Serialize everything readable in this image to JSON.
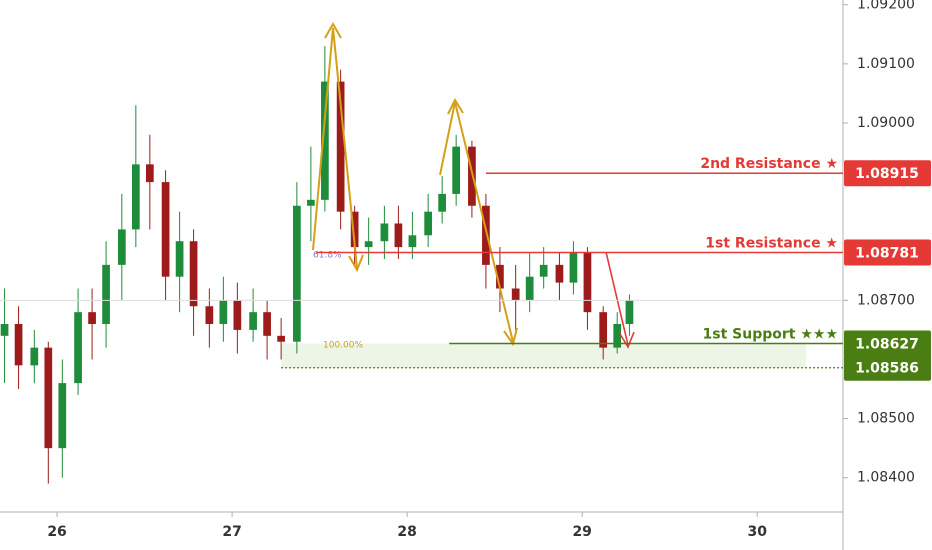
{
  "chart_data": {
    "type": "candlestick",
    "x": [
      25.7,
      25.78,
      25.87,
      25.95,
      26.03,
      26.12,
      26.2,
      26.28,
      26.37,
      26.45,
      26.53,
      26.62,
      26.7,
      26.78,
      26.87,
      26.95,
      27.03,
      27.12,
      27.2,
      27.28,
      27.37,
      27.45,
      27.53,
      27.62,
      27.7,
      27.78,
      27.87,
      27.95,
      28.03,
      28.12,
      28.2,
      28.28,
      28.37,
      28.45,
      28.53,
      28.62,
      28.7,
      28.78,
      28.87,
      28.95,
      29.03,
      29.12,
      29.2,
      29.27
    ],
    "open": [
      1.0864,
      1.0866,
      1.0859,
      1.0862,
      1.0845,
      1.0856,
      1.0868,
      1.0866,
      1.0876,
      1.0882,
      1.0893,
      1.089,
      1.0874,
      1.088,
      1.0869,
      1.0866,
      1.087,
      1.0865,
      1.0868,
      1.0864,
      1.0863,
      1.0886,
      1.0887,
      1.0907,
      1.0885,
      1.0879,
      1.088,
      1.0883,
      1.0879,
      1.0881,
      1.0885,
      1.0888,
      1.0896,
      1.0886,
      1.0876,
      1.0872,
      1.087,
      1.0874,
      1.0876,
      1.0873,
      1.0878,
      1.0868,
      1.0862,
      1.0866
    ],
    "high": [
      1.0872,
      1.0869,
      1.0865,
      1.0863,
      1.086,
      1.0872,
      1.0872,
      1.088,
      1.0888,
      1.0903,
      1.0898,
      1.0892,
      1.0885,
      1.0882,
      1.0872,
      1.0874,
      1.0873,
      1.0872,
      1.087,
      1.0867,
      1.089,
      1.0896,
      1.0913,
      1.0909,
      1.0886,
      1.0884,
      1.0886,
      1.0886,
      1.0885,
      1.0888,
      1.0891,
      1.0898,
      1.0897,
      1.0888,
      1.0879,
      1.0876,
      1.0878,
      1.0879,
      1.0878,
      1.088,
      1.0879,
      1.0869,
      1.0868,
      1.0871
    ],
    "low": [
      1.0856,
      1.0855,
      1.0856,
      1.0839,
      1.084,
      1.0854,
      1.086,
      1.0862,
      1.087,
      1.0879,
      1.0882,
      1.087,
      1.0868,
      1.0864,
      1.0862,
      1.0863,
      1.0861,
      1.0863,
      1.086,
      1.086,
      1.0861,
      1.088,
      1.0885,
      1.0882,
      1.0876,
      1.0876,
      1.0877,
      1.0877,
      1.0877,
      1.0879,
      1.0883,
      1.0886,
      1.0884,
      1.0872,
      1.0868,
      1.0865,
      1.0868,
      1.0872,
      1.087,
      1.0871,
      1.0865,
      1.086,
      1.0861,
      1.0864
    ],
    "close": [
      1.0866,
      1.0859,
      1.0862,
      1.0845,
      1.0856,
      1.0868,
      1.0866,
      1.0876,
      1.0882,
      1.0893,
      1.089,
      1.0874,
      1.088,
      1.0869,
      1.0866,
      1.087,
      1.0865,
      1.0868,
      1.0864,
      1.0863,
      1.0886,
      1.0887,
      1.0907,
      1.0885,
      1.0879,
      1.088,
      1.0883,
      1.0879,
      1.0881,
      1.0885,
      1.0888,
      1.0896,
      1.0886,
      1.0876,
      1.0872,
      1.087,
      1.0874,
      1.0876,
      1.0873,
      1.0878,
      1.0868,
      1.0862,
      1.0866,
      1.087
    ],
    "up_color": "#1e8c3a",
    "down_color": "#9e1b1b",
    "xlim": [
      25.674,
      30.49
    ],
    "xticks": [
      26,
      27,
      28,
      29,
      30
    ],
    "ylim": [
      1.08342,
      1.09208
    ],
    "yticks": [
      {
        "value": 1.092,
        "label": "1.09200"
      },
      {
        "value": 1.091,
        "label": "1.09100"
      },
      {
        "value": 1.09,
        "label": "1.09000"
      },
      {
        "value": 1.087,
        "label": "1.08700"
      },
      {
        "value": 1.085,
        "label": "1.08500"
      },
      {
        "value": 1.084,
        "label": "1.08400"
      }
    ],
    "levels": [
      {
        "name": "2nd Resistance ★",
        "value": 1.08915,
        "label": "1.08915",
        "color": "#e53935",
        "from": 28.45
      },
      {
        "name": "1st Resistance ★",
        "value": 1.08781,
        "label": "1.08781",
        "color": "#e53935",
        "from": 27.48
      },
      {
        "name": "1st Support ★★★",
        "value": 1.08627,
        "label": "1.08627",
        "color": "#4a7d12",
        "from": 28.24
      },
      {
        "value": 1.08586,
        "label": "1.08586",
        "color": "#4a7d12",
        "from": 27.28,
        "dashed": true
      }
    ],
    "annotations": [
      "61.8%",
      "100.00%"
    ]
  }
}
